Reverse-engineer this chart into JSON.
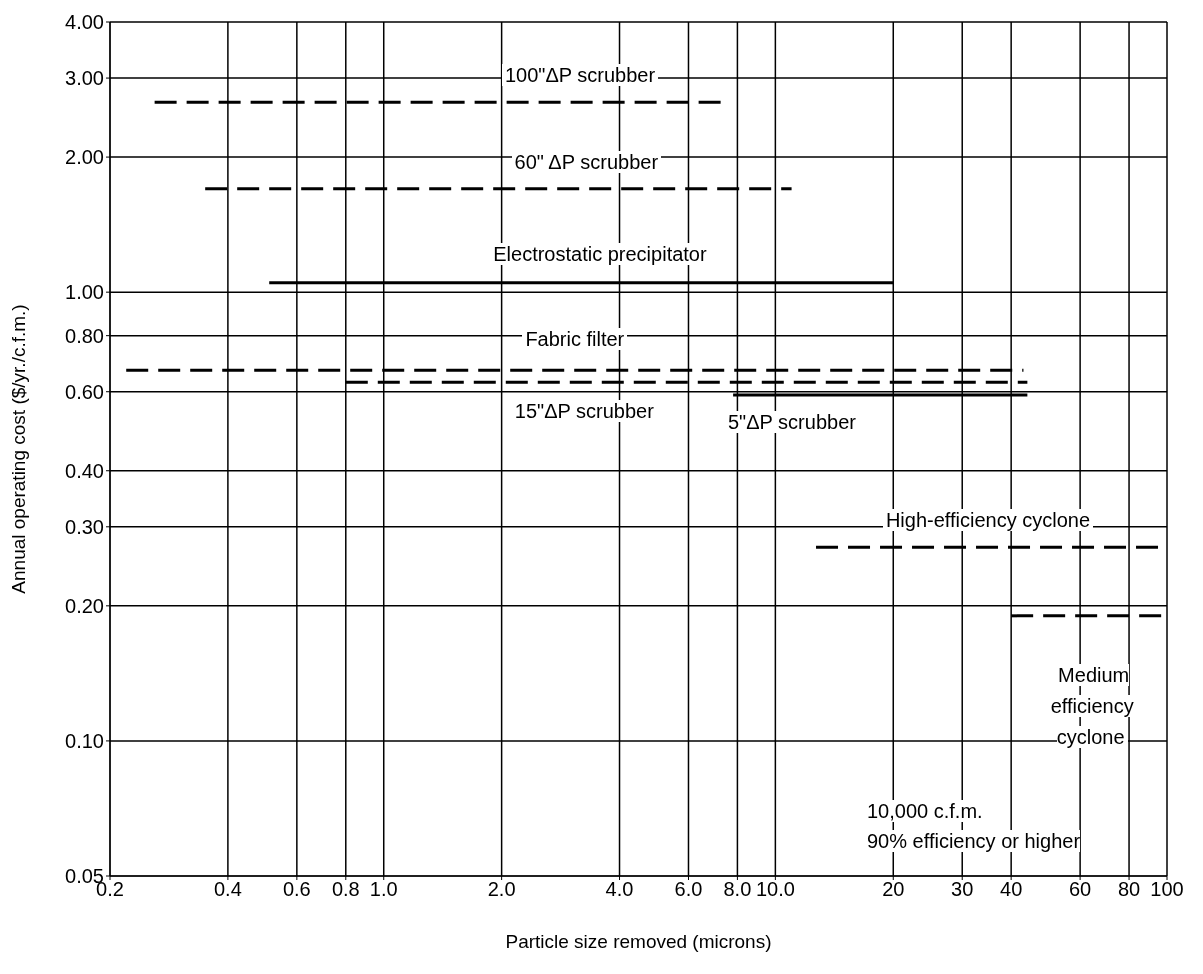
{
  "chart_data": {
    "type": "line",
    "xlabel": "Particle size removed (microns)",
    "ylabel": "Annual operating cost ($/yr./c.f.m.)",
    "log": "xy",
    "grid": true,
    "marker": "none",
    "xlim": [
      0.2,
      100
    ],
    "ylim": [
      0.05,
      4
    ],
    "xticks": [
      {
        "value": 0.2,
        "label": "0.2"
      },
      {
        "value": 0.4,
        "label": "0.4"
      },
      {
        "value": 0.6,
        "label": "0.6"
      },
      {
        "value": 0.8,
        "label": "0.8"
      },
      {
        "value": 1,
        "label": "1.0"
      },
      {
        "value": 2,
        "label": "2.0"
      },
      {
        "value": 4,
        "label": "4.0"
      },
      {
        "value": 6,
        "label": "6.0"
      },
      {
        "value": 8,
        "label": "8.0"
      },
      {
        "value": 10,
        "label": "10.0"
      },
      20,
      30,
      40,
      60,
      80,
      100
    ],
    "yticks": [
      {
        "value": 0.05,
        "label": "0.05"
      },
      {
        "value": 0.1,
        "label": "0.10"
      },
      {
        "value": 0.2,
        "label": "0.20"
      },
      {
        "value": 0.3,
        "label": "0.30"
      },
      {
        "value": 0.4,
        "label": "0.40"
      },
      {
        "value": 0.6,
        "label": "0.60"
      },
      {
        "value": 0.8,
        "label": "0.80"
      },
      {
        "value": 1,
        "label": "1.00"
      },
      {
        "value": 2,
        "label": "2.00"
      },
      {
        "value": 3,
        "label": "3.00"
      },
      {
        "value": 4,
        "label": "4.00"
      }
    ],
    "series": [
      {
        "name": "100\"ΔP scrubber",
        "color": "#000000",
        "line_style": "dashed",
        "x": [
          0.26,
          7.3
        ],
        "values": [
          2.65,
          2.65
        ]
      },
      {
        "name": "60\" ΔP scrubber",
        "color": "#000000",
        "line_style": "dashed",
        "x": [
          0.35,
          11
        ],
        "values": [
          1.7,
          1.7
        ]
      },
      {
        "name": "Electrostatic precipitator",
        "color": "#000000",
        "line_style": "solid",
        "x": [
          0.51,
          20
        ],
        "values": [
          1.05,
          1.05
        ]
      },
      {
        "name": "Fabric filter",
        "color": "#000000",
        "line_style": "dashed",
        "x": [
          0.22,
          43
        ],
        "values": [
          0.67,
          0.67
        ]
      },
      {
        "name": "15\"ΔP scrubber",
        "color": "#000000",
        "line_style": "dashed",
        "x": [
          0.8,
          44
        ],
        "values": [
          0.63,
          0.63
        ]
      },
      {
        "name": "5\"ΔP scrubber",
        "color": "#000000",
        "line_style": "solid",
        "x": [
          7.8,
          44
        ],
        "values": [
          0.59,
          0.59
        ]
      },
      {
        "name": "High-efficiency cyclone",
        "color": "#000000",
        "line_style": "dashed",
        "x": [
          12.7,
          100
        ],
        "values": [
          0.27,
          0.27
        ]
      },
      {
        "name": "Medium efficiency cyclone",
        "color": "#000000",
        "line_style": "dashed",
        "x": [
          40,
          100
        ],
        "values": [
          0.19,
          0.19
        ]
      }
    ],
    "annotations": [
      "10,000 c.f.m.",
      "90% efficiency or higher"
    ]
  }
}
